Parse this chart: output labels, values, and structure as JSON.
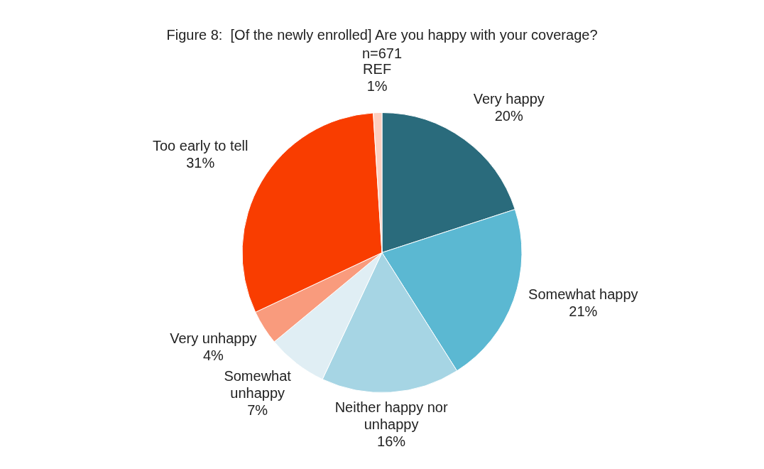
{
  "chart_data": {
    "type": "pie",
    "title": "Figure 8:  [Of the newly enrolled] Are you happy with your coverage?",
    "subtitle": "n=671",
    "categories": [
      "Very happy",
      "Somewhat happy",
      "Neither happy nor unhappy",
      "Somewhat unhappy",
      "Very unhappy",
      "Too early to tell",
      "REF"
    ],
    "values": [
      20,
      21,
      16,
      7,
      4,
      31,
      1
    ],
    "colors": [
      "#2a6b7c",
      "#5bb8d2",
      "#a6d5e4",
      "#e0eef4",
      "#f99b7d",
      "#f93d00",
      "#fdcfc0"
    ],
    "value_labels": [
      "20%",
      "21%",
      "16%",
      "7%",
      "4%",
      "31%",
      "1%"
    ],
    "legend": false
  }
}
